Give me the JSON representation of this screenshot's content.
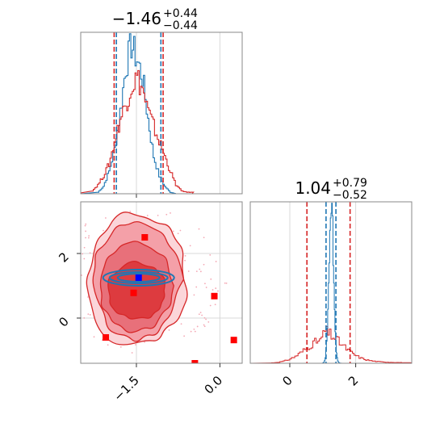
{
  "chart_data": {
    "type": "corner",
    "panels": [
      {
        "id": "hist-param1",
        "type": "histogram",
        "title_main": "−1.46",
        "title_sup": "+0.44",
        "title_sub": "−0.44",
        "xlim": [
          -2.5,
          0.4
        ],
        "grid": true,
        "vlines": {
          "red": [
            -1.9,
            -1.02
          ],
          "blue": [
            -1.86,
            -1.06
          ]
        },
        "series": [
          {
            "color": "#1f77b4",
            "bins": [
              -2.2,
              -2.1,
              -2.0,
              -1.9,
              -1.8,
              -1.7,
              -1.6,
              -1.5,
              -1.4,
              -1.3,
              -1.2,
              -1.1,
              -1.0,
              -0.9,
              -0.8
            ],
            "counts": [
              0.01,
              0.05,
              0.15,
              0.3,
              0.55,
              0.85,
              1.0,
              0.9,
              0.78,
              0.5,
              0.25,
              0.12,
              0.05,
              0.01,
              0.0
            ]
          },
          {
            "color": "#d62728",
            "bins": [
              -2.3,
              -2.2,
              -2.1,
              -2.0,
              -1.9,
              -1.8,
              -1.7,
              -1.6,
              -1.5,
              -1.4,
              -1.3,
              -1.2,
              -1.1,
              -1.0,
              -0.9,
              -0.8,
              -0.7,
              -0.6
            ],
            "counts": [
              0.02,
              0.06,
              0.12,
              0.2,
              0.35,
              0.5,
              0.6,
              0.72,
              0.78,
              0.7,
              0.55,
              0.45,
              0.35,
              0.25,
              0.15,
              0.06,
              0.02,
              0.01
            ]
          }
        ]
      },
      {
        "id": "hist-param2",
        "type": "histogram",
        "title_main": "1.04",
        "title_sup": "+0.79",
        "title_sub": "−0.52",
        "xlim": [
          -1.2,
          3.7
        ],
        "xticks": [
          "0",
          "2"
        ],
        "xtick_values": [
          0,
          2
        ],
        "grid": true,
        "vlines": {
          "red": [
            0.52,
            1.83
          ],
          "blue": [
            1.1,
            1.4
          ]
        }
      },
      {
        "id": "scatter-2d",
        "type": "scatter",
        "xlim": [
          -2.5,
          0.4
        ],
        "ylim": [
          -1.4,
          3.6
        ],
        "xticks": [
          "−1.5",
          "0.0"
        ],
        "xtick_values": [
          -1.5,
          0.0
        ],
        "yticks": [
          "0",
          "2"
        ],
        "ytick_values": [
          0,
          2
        ],
        "grid": true,
        "red_squares": [
          {
            "x": -1.35,
            "y": 2.5
          },
          {
            "x": -1.55,
            "y": 0.78
          },
          {
            "x": -0.1,
            "y": 0.68
          },
          {
            "x": -2.05,
            "y": -0.6
          },
          {
            "x": 0.25,
            "y": -0.68
          },
          {
            "x": -0.45,
            "y": -1.4
          }
        ],
        "blue_square": {
          "x": -1.46,
          "y": 1.25
        }
      }
    ],
    "colors": {
      "red": "#d62728",
      "blue": "#1f77b4",
      "grid": "#d9d9d9",
      "frame": "#888888"
    }
  }
}
